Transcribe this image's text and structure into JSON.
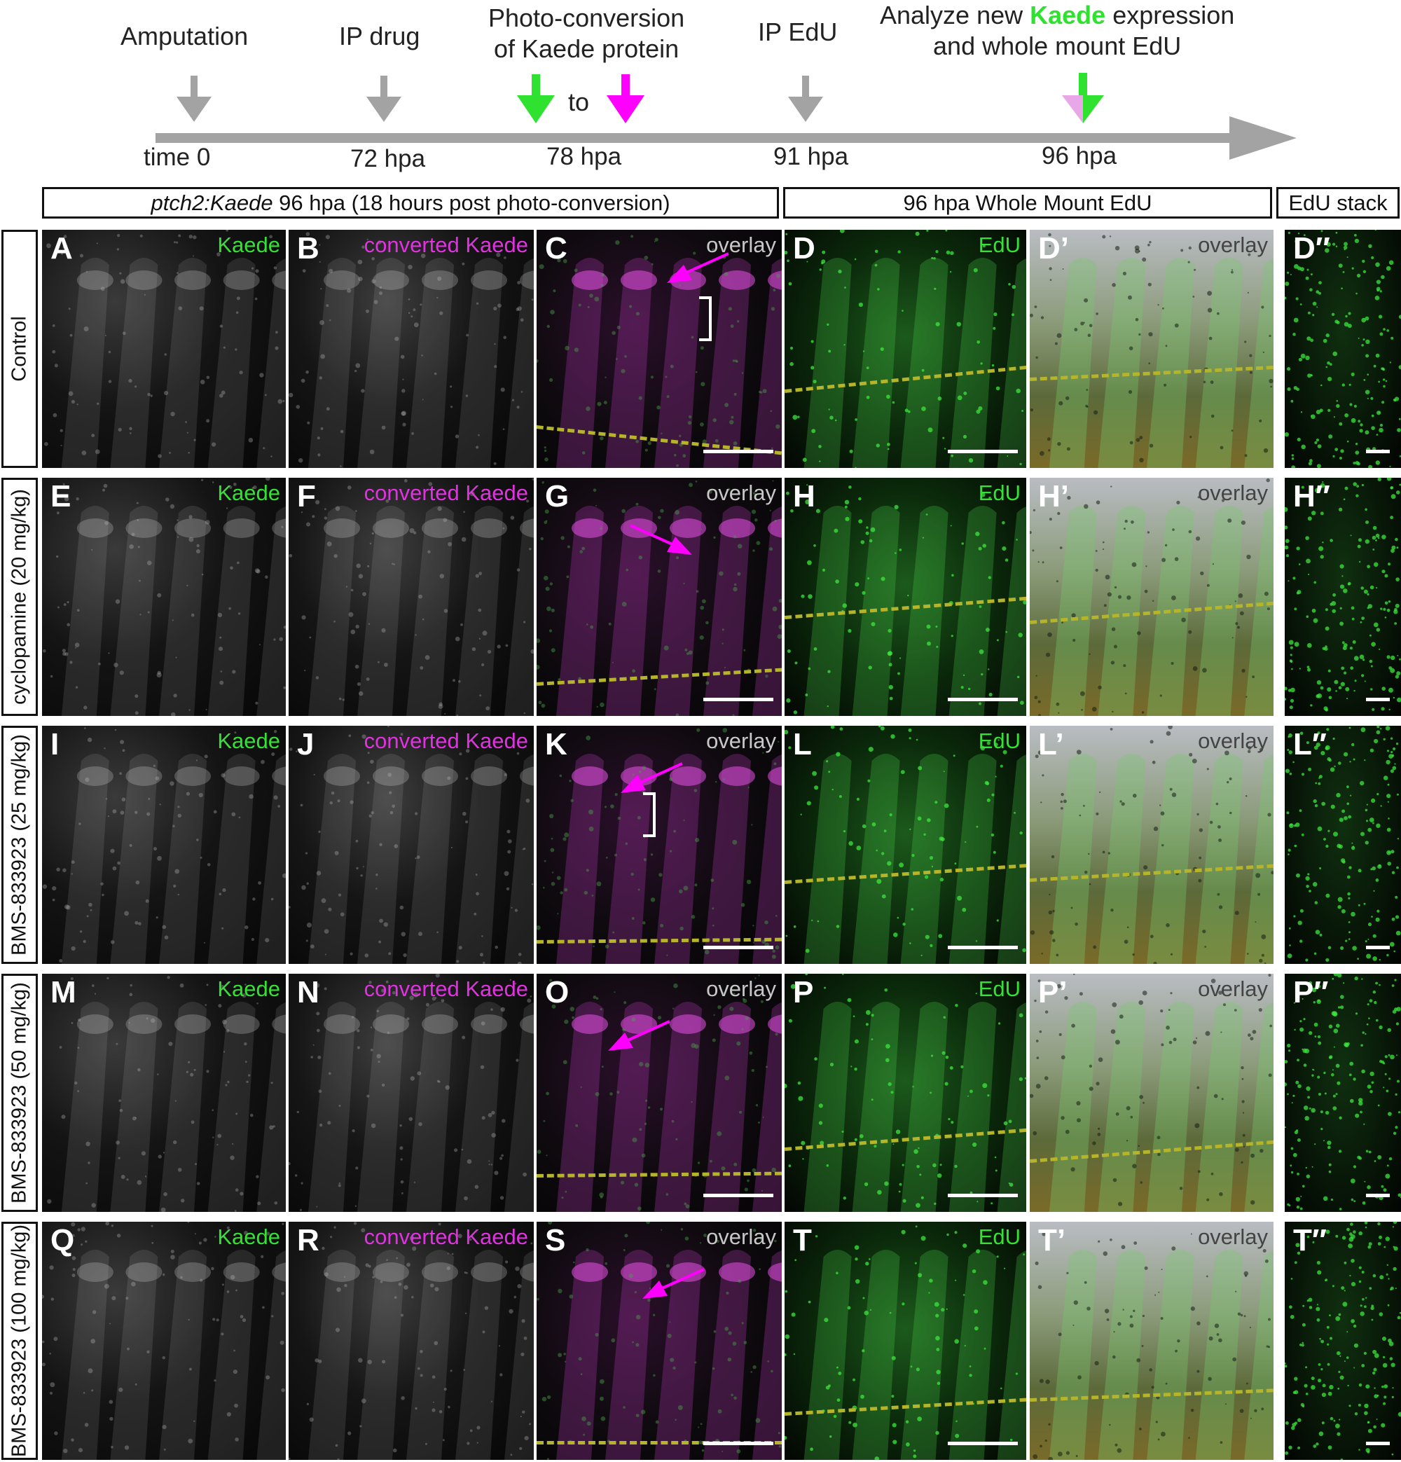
{
  "timeline": {
    "events": [
      {
        "label": "Amputation",
        "time": "time 0"
      },
      {
        "label": "IP drug",
        "time": "72 hpa"
      },
      {
        "label_line1": "Photo-conversion",
        "label_line2": "of Kaede protein",
        "connector": "to",
        "time": "78 hpa"
      },
      {
        "label": "IP EdU",
        "time": "91 hpa"
      },
      {
        "label_line1_pre": "Analyze new ",
        "label_line1_kaede": "Kaede",
        "label_line1_post": " expression",
        "label_line2": "and whole mount EdU",
        "time": "96 hpa"
      }
    ],
    "colors": {
      "gray_arrow": "#a3a3a3",
      "green_arrow": "#2fe22f",
      "magenta_arrow": "#ff00ff"
    }
  },
  "headers": {
    "kaede_italic": "ptch2:Kaede",
    "kaede_rest": " 96 hpa (18 hours post photo-conversion)",
    "edu": "96 hpa Whole Mount EdU",
    "stack": "EdU stack"
  },
  "rows": [
    {
      "label": "Control",
      "letters": [
        "A",
        "B",
        "C",
        "D",
        "D’",
        "D″"
      ]
    },
    {
      "label": "cyclopamine (20 mg/kg)",
      "letters": [
        "E",
        "F",
        "G",
        "H",
        "H’",
        "H″"
      ]
    },
    {
      "label": "BMS-833923 (25 mg/kg)",
      "letters": [
        "I",
        "J",
        "K",
        "L",
        "L’",
        "L″"
      ]
    },
    {
      "label": "BMS-833923 (50 mg/kg)",
      "letters": [
        "M",
        "N",
        "O",
        "P",
        "P’",
        "P″"
      ]
    },
    {
      "label": "BMS-833923 (100 mg/kg)",
      "letters": [
        "Q",
        "R",
        "S",
        "T",
        "T’",
        "T″"
      ]
    }
  ],
  "panel_captions": {
    "kaede": "Kaede",
    "converted": "converted Kaede",
    "overlay": "overlay",
    "edu": "EdU"
  },
  "panel_colors": {
    "kaede_text": "#34e134",
    "converted_text": "#e032e0",
    "overlay_text": "#c8c8c8",
    "dashed_line": "#b6b42a",
    "arrow": "#ff00ff"
  }
}
